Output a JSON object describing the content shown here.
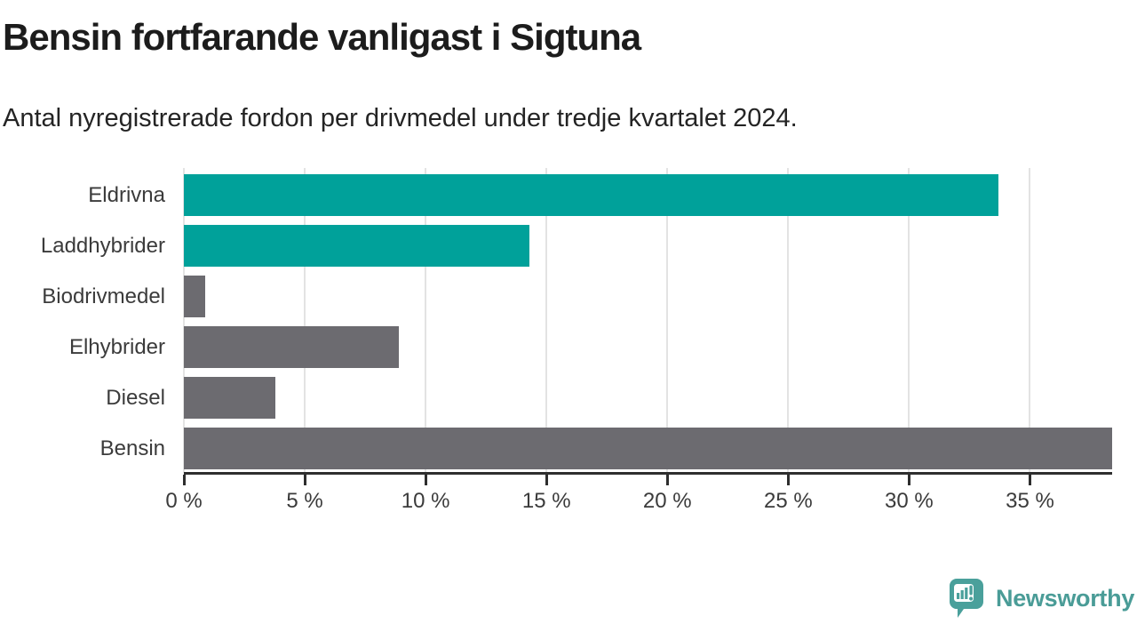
{
  "title": "Bensin fortfarande vanligast i Sigtuna",
  "subtitle": "Antal nyregistrerade fordon per drivmedel under tredje kvartalet 2024.",
  "colors": {
    "accent_teal": "#00a19a",
    "bar_gray": "#6c6b70",
    "grid": "#e3e3e3",
    "axis": "#2e2e2e",
    "tick_text": "#3b3b3b",
    "title_text": "#1c1c1c",
    "logo_teal": "#4a9c97"
  },
  "chart_data": {
    "type": "bar",
    "orientation": "horizontal",
    "title": "Bensin fortfarande vanligast i Sigtuna",
    "subtitle": "Antal nyregistrerade fordon per drivmedel under tredje kvartalet 2024.",
    "categories": [
      "Eldrivna",
      "Laddhybrider",
      "Biodrivmedel",
      "Elhybrider",
      "Diesel",
      "Bensin"
    ],
    "values": [
      33.7,
      14.3,
      0.9,
      8.9,
      3.8,
      38.4
    ],
    "unit": "%",
    "bar_colors": [
      "#00a19a",
      "#00a19a",
      "#6c6b70",
      "#6c6b70",
      "#6c6b70",
      "#6c6b70"
    ],
    "xlim": [
      0,
      38.4
    ],
    "x_ticks": [
      0,
      5,
      10,
      15,
      20,
      25,
      30,
      35
    ],
    "x_tick_labels": [
      "0 %",
      "5 %",
      "10 %",
      "15 %",
      "20 %",
      "25 %",
      "30 %",
      "35 %"
    ],
    "grid": true,
    "legend": "none"
  },
  "footer": {
    "brand": "Newsworthy",
    "logo_icon": "newsworthy-speech-bubble-bar-chart-icon"
  }
}
